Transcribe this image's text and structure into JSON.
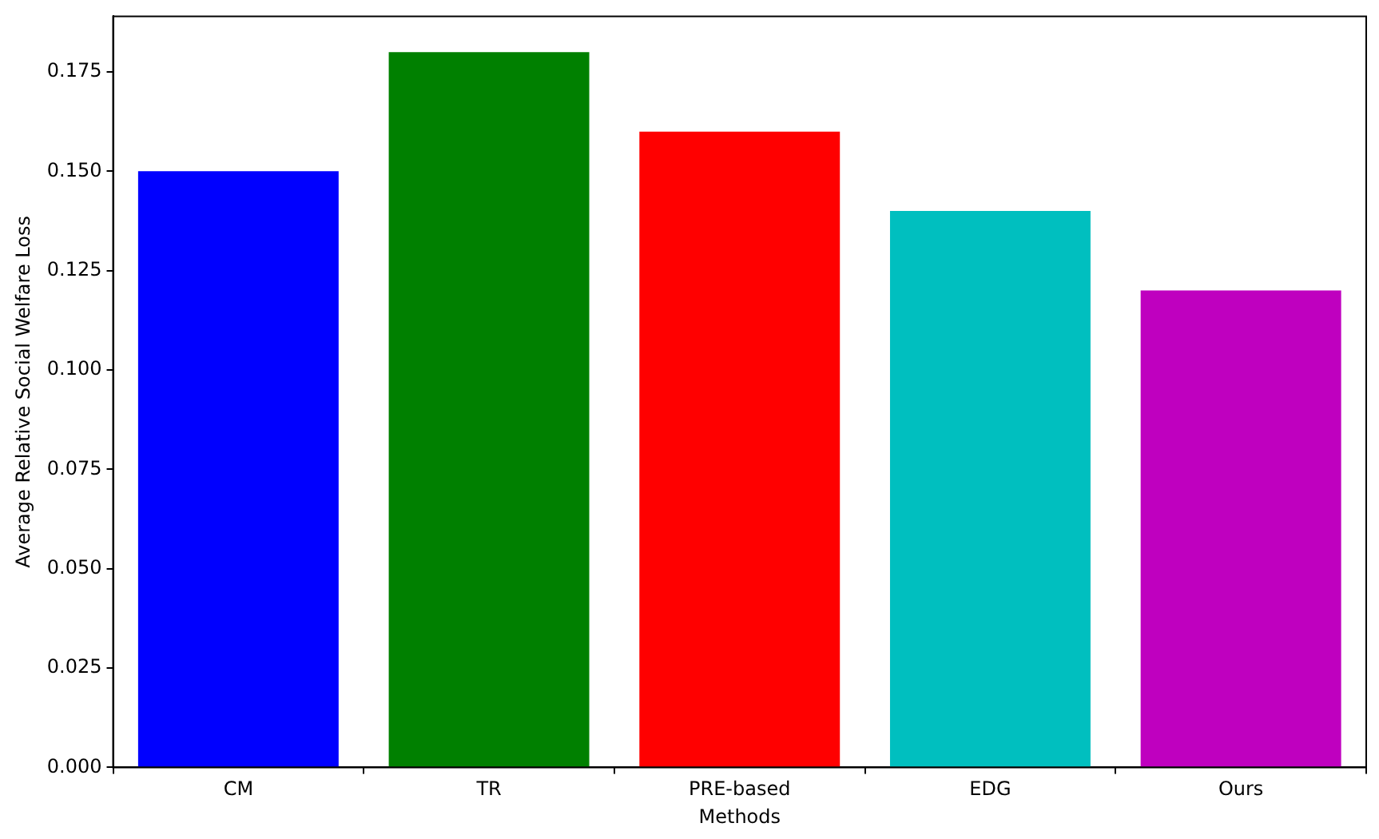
{
  "chart_data": {
    "type": "bar",
    "xlabel": "Methods",
    "ylabel": "Average Relative Social Welfare Loss",
    "categories": [
      "CM",
      "TR",
      "PRE-based",
      "EDG",
      "Ours"
    ],
    "values": [
      0.15,
      0.18,
      0.16,
      0.14,
      0.12
    ],
    "colors": [
      "#0000ff",
      "#008000",
      "#ff0000",
      "#00bfbf",
      "#bf00bf"
    ],
    "ylim": [
      0,
      0.189
    ],
    "yticks": [
      {
        "value": 0,
        "label": "0.000"
      },
      {
        "value": 0.025,
        "label": "0.025"
      },
      {
        "value": 0.05,
        "label": "0.050"
      },
      {
        "value": 0.075,
        "label": "0.075"
      },
      {
        "value": 0.1,
        "label": "0.100"
      },
      {
        "value": 0.125,
        "label": "0.125"
      },
      {
        "value": 0.15,
        "label": "0.150"
      },
      {
        "value": 0.175,
        "label": "0.175"
      }
    ],
    "grid": false,
    "legend": false
  }
}
